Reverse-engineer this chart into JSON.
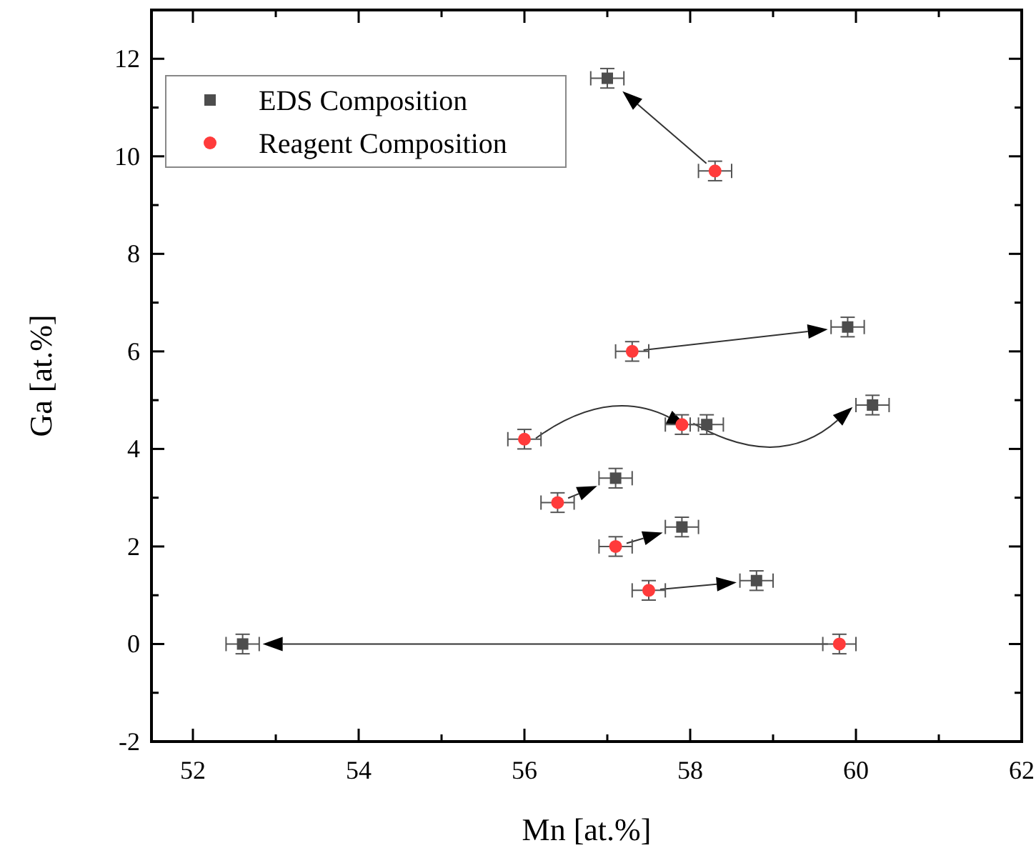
{
  "chart_data": {
    "type": "scatter",
    "xlabel": "Mn [at.%]",
    "ylabel": "Ga [at.%]",
    "xlim": [
      51.5,
      62
    ],
    "ylim": [
      -2,
      13
    ],
    "xticks": [
      52,
      {
        "value": 53,
        "label": null
      },
      54,
      {
        "value": 55,
        "label": null
      },
      56,
      {
        "value": 57,
        "label": null
      },
      58,
      {
        "value": 59,
        "label": null
      },
      60,
      {
        "value": 61,
        "label": null
      },
      62
    ],
    "yticks": [
      -2,
      {
        "value": -1,
        "label": null
      },
      0,
      {
        "value": 1,
        "label": null
      },
      2,
      {
        "value": 3,
        "label": null
      },
      4,
      {
        "value": 5,
        "label": null
      },
      6,
      {
        "value": 7,
        "label": null
      },
      8,
      {
        "value": 9,
        "label": null
      },
      10,
      {
        "value": 11,
        "label": null
      },
      12
    ],
    "grid": false,
    "legend": "top left",
    "series": [
      {
        "name": "EDS Composition",
        "color": "#4d4d4d",
        "marker": "square",
        "x": [
          57.0,
          59.9,
          58.2,
          60.2,
          57.1,
          57.9,
          58.8,
          52.6
        ],
        "values": [
          11.6,
          6.5,
          4.5,
          4.9,
          3.4,
          2.4,
          1.3,
          0
        ],
        "errors": [
          0.2,
          0.2,
          0.2,
          0.2,
          0.2,
          0.2,
          0.2,
          0.2
        ],
        "xerrors": [
          0.2,
          0.2,
          0.2,
          0.2,
          0.2,
          0.2,
          0.2,
          0.2
        ]
      },
      {
        "name": "Reagent Composition",
        "color": "#ff3b3b",
        "marker": "circle",
        "x": [
          58.3,
          57.3,
          56.0,
          57.9,
          56.4,
          57.1,
          57.5,
          59.8
        ],
        "values": [
          9.7,
          6.0,
          4.2,
          4.5,
          2.9,
          2.0,
          1.1,
          0
        ],
        "errors": [
          0.2,
          0.2,
          0.2,
          0.2,
          0.2,
          0.2,
          0.2,
          0.2
        ],
        "xerrors": [
          0.2,
          0.2,
          0.2,
          0.2,
          0.2,
          0.2,
          0.2,
          0.2
        ]
      }
    ]
  }
}
